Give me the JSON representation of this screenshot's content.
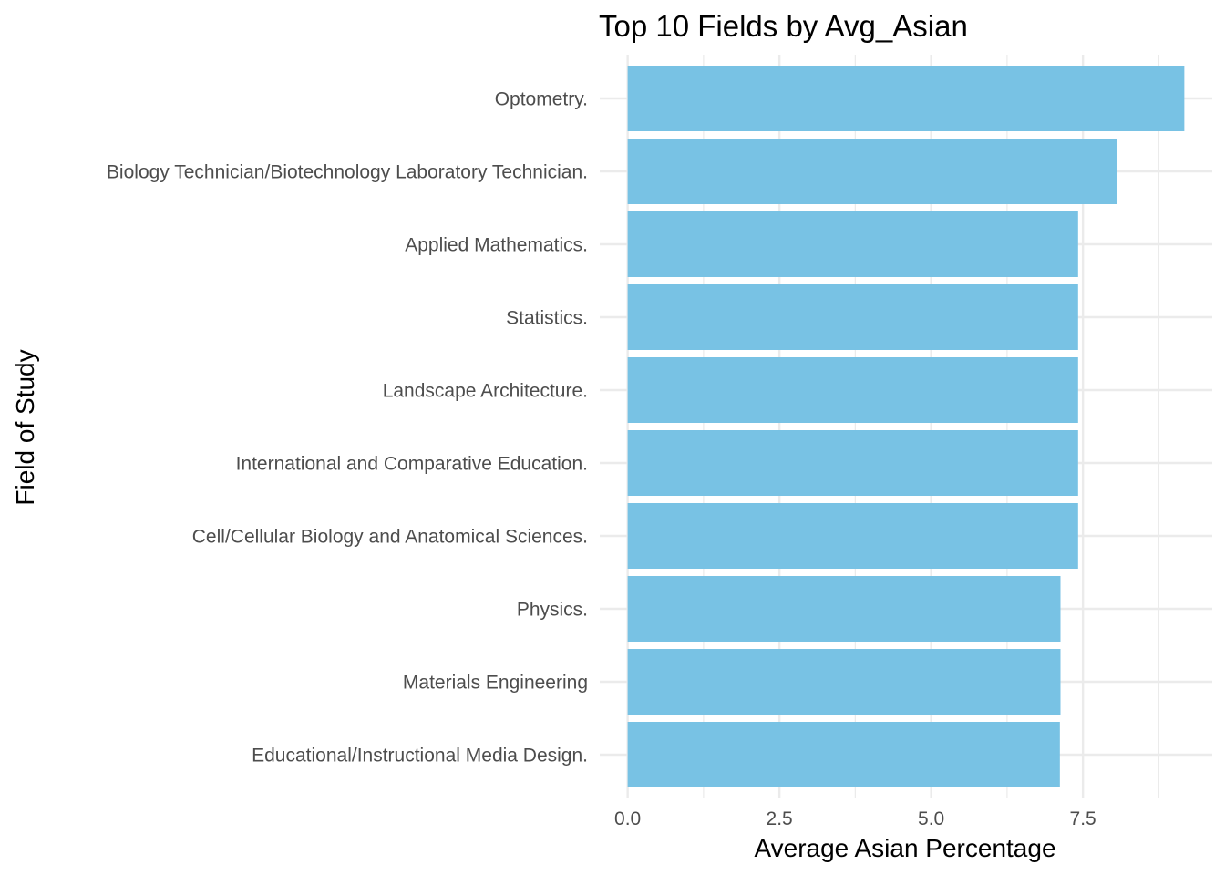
{
  "chart_data": {
    "type": "bar",
    "orientation": "horizontal",
    "title": "Top 10 Fields by Avg_Asian",
    "xlabel": "Average Asian Percentage",
    "ylabel": "Field of Study",
    "categories": [
      "Optometry.",
      "Biology Technician/Biotechnology Laboratory Technician.",
      "Applied Mathematics.",
      "Statistics.",
      "Landscape Architecture.",
      "International and Comparative Education.",
      "Cell/Cellular Biology and Anatomical Sciences.",
      "Physics.",
      "Materials Engineering",
      "Educational/Instructional Media Design."
    ],
    "values": [
      9.17,
      8.06,
      7.42,
      7.42,
      7.42,
      7.42,
      7.42,
      7.13,
      7.13,
      7.12
    ],
    "xlim": [
      -0.46,
      9.63
    ],
    "x_ticks": [
      0,
      2.5,
      5,
      7.5
    ],
    "x_tick_labels": [
      "0.0",
      "2.5",
      "5.0",
      "7.5"
    ],
    "grid": true,
    "bar_color": "#78C2E4",
    "grid_color": "#EBEBEB"
  }
}
